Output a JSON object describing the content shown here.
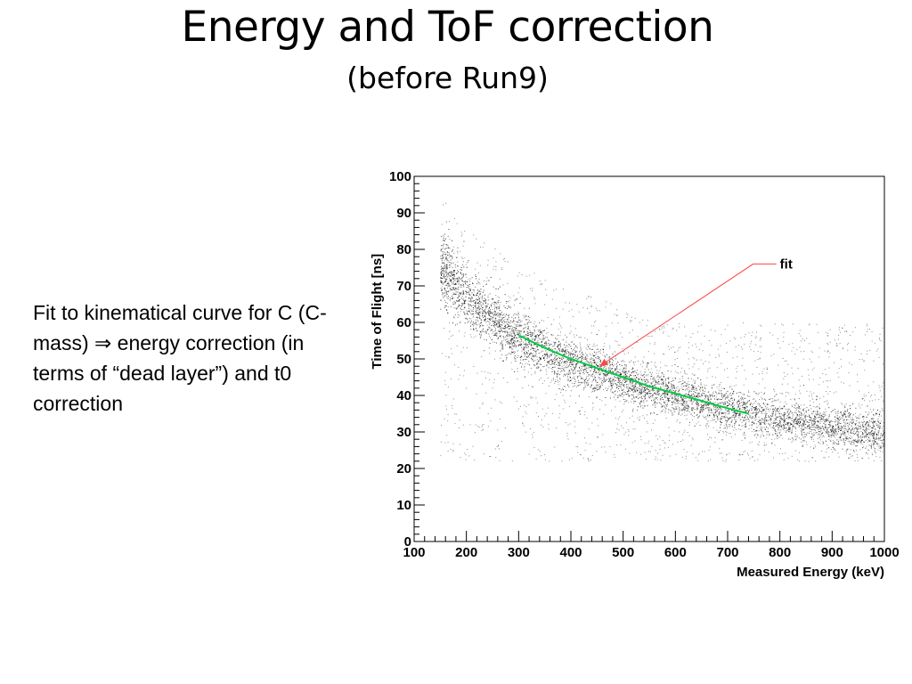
{
  "slide": {
    "title": "Energy and ToF correction",
    "subtitle": "(before Run9)",
    "body_text": "Fit to kinematical curve for C (C-mass) ⇒ energy correction (in terms of “dead layer”) and t0 correction"
  },
  "chart_data": {
    "type": "scatter",
    "title": "",
    "xlabel": "Measured Energy (keV)",
    "ylabel": "Time of Flight [ns]",
    "xlim": [
      100,
      1000
    ],
    "ylim": [
      0,
      100
    ],
    "x_ticks": [
      100,
      200,
      300,
      400,
      500,
      600,
      700,
      800,
      900,
      1000
    ],
    "y_ticks": [
      0,
      10,
      20,
      30,
      40,
      50,
      60,
      70,
      80,
      90,
      100
    ],
    "grid": false,
    "series": [
      {
        "style": "dense band of dots",
        "color": "#000000",
        "x_range": [
          150,
          1000
        ],
        "band_center": [
          [
            150,
            75
          ],
          [
            200,
            67
          ],
          [
            250,
            61
          ],
          [
            300,
            56
          ],
          [
            350,
            52
          ],
          [
            400,
            49
          ],
          [
            450,
            47
          ],
          [
            500,
            44
          ],
          [
            550,
            42
          ],
          [
            600,
            40
          ],
          [
            650,
            38.5
          ],
          [
            700,
            36.5
          ],
          [
            750,
            35
          ],
          [
            800,
            33.5
          ],
          [
            850,
            32.5
          ],
          [
            900,
            31.5
          ],
          [
            950,
            30.5
          ],
          [
            1000,
            29.5
          ]
        ],
        "band_width": [
          [
            150,
            10
          ],
          [
            300,
            8
          ],
          [
            500,
            6
          ],
          [
            1000,
            6
          ]
        ],
        "background_y_range": [
          22,
          95
        ]
      },
      {
        "name": "fit",
        "style": "line",
        "color": "#00cc44",
        "points": [
          [
            300,
            56.5
          ],
          [
            350,
            53
          ],
          [
            400,
            50
          ],
          [
            450,
            47.5
          ],
          [
            500,
            45
          ],
          [
            550,
            42.5
          ],
          [
            600,
            40.5
          ],
          [
            650,
            38.5
          ],
          [
            700,
            36.5
          ],
          [
            740,
            35
          ]
        ]
      }
    ],
    "annotations": [
      {
        "text": "fit",
        "color": "#ff4444",
        "points_to": [
          455,
          48
        ],
        "label_at": [
          800,
          76
        ]
      }
    ]
  }
}
